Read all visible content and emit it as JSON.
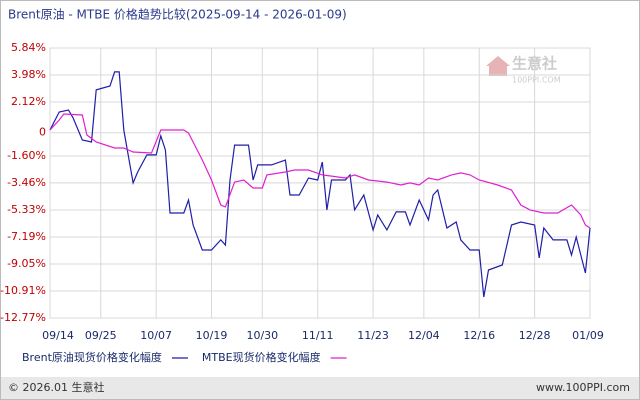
{
  "chart_data": {
    "type": "line",
    "title": "Brent原油 - MTBE 价格趋势比较(2025-09-14 - 2026-01-09)",
    "watermark": "生意社",
    "watermark_sub": "100PPI.COM",
    "footer_left": "© 2026.01 生意社",
    "footer_right": "www.100PPI.com",
    "grid": true,
    "xlim": [
      "09/14",
      "01/09"
    ],
    "xticks": [
      "09/14",
      "09/25",
      "10/07",
      "10/19",
      "10/30",
      "11/11",
      "11/23",
      "12/04",
      "12/16",
      "12/28",
      "01/09"
    ],
    "ylim": [
      -12.77,
      5.84
    ],
    "yticks": [
      {
        "value": 5.84,
        "label": "5.84%"
      },
      {
        "value": 3.98,
        "label": "3.98%"
      },
      {
        "value": 2.12,
        "label": "2.12%"
      },
      0,
      {
        "value": -1.6,
        "label": "-1.60%"
      },
      {
        "value": -3.46,
        "label": "-3.46%"
      },
      {
        "value": -5.33,
        "label": "-5.33%"
      },
      {
        "value": -7.19,
        "label": "-7.19%"
      },
      {
        "value": -9.05,
        "label": "-9.05%"
      },
      {
        "value": -10.91,
        "label": "-10.91%"
      },
      {
        "value": -12.77,
        "label": "-12.77%"
      }
    ],
    "series": [
      {
        "name": "Brent原油现货价格变化幅度",
        "color": "#1f1fa8",
        "x": [
          "09/14",
          "09/16",
          "09/18",
          "09/19",
          "09/21",
          "09/23",
          "09/24",
          "09/27",
          "09/28",
          "09/29",
          "09/30",
          "10/02",
          "10/03",
          "10/05",
          "10/07",
          "10/08",
          "10/09",
          "10/10",
          "10/13",
          "10/14",
          "10/15",
          "10/17",
          "10/19",
          "10/21",
          "10/22",
          "10/23",
          "10/24",
          "10/27",
          "10/28",
          "10/29",
          "11/01",
          "11/04",
          "11/05",
          "11/07",
          "11/09",
          "11/11",
          "11/12",
          "11/13",
          "11/14",
          "11/17",
          "11/18",
          "11/19",
          "11/21",
          "11/23",
          "11/24",
          "11/26",
          "11/28",
          "11/30",
          "12/01",
          "12/03",
          "12/05",
          "12/06",
          "12/07",
          "12/09",
          "12/11",
          "12/12",
          "12/14",
          "12/16",
          "12/17",
          "12/18",
          "12/21",
          "12/23",
          "12/25",
          "12/28",
          "12/29",
          "12/30",
          "01/01",
          "01/04",
          "01/05",
          "01/06",
          "01/08",
          "01/09"
        ],
        "values": [
          0.19,
          1.43,
          1.57,
          1.02,
          -0.5,
          -0.64,
          2.95,
          3.22,
          4.19,
          4.19,
          0.19,
          -3.46,
          -2.71,
          -1.53,
          -1.53,
          -0.22,
          -1.19,
          -5.53,
          -5.53,
          -4.64,
          -6.36,
          -8.08,
          -8.08,
          -7.39,
          -7.74,
          -3.26,
          -0.85,
          -0.85,
          -3.26,
          -2.22,
          -2.22,
          -1.88,
          -4.29,
          -4.29,
          -3.12,
          -3.26,
          -2.02,
          -5.32,
          -3.26,
          -3.26,
          -2.91,
          -5.32,
          -4.29,
          -6.7,
          -5.67,
          -6.7,
          -5.46,
          -5.46,
          -6.36,
          -4.64,
          -6.01,
          -4.29,
          -3.95,
          -6.57,
          -6.15,
          -7.39,
          -8.08,
          -8.08,
          -11.32,
          -9.46,
          -9.12,
          -6.36,
          -6.15,
          -6.36,
          -8.63,
          -6.57,
          -7.39,
          -7.39,
          -8.43,
          -7.19,
          -9.67,
          -6.57
        ]
      },
      {
        "name": "MTBE现货价格变化幅度",
        "color": "#e020d0",
        "x": [
          "09/14",
          "09/16",
          "09/17",
          "09/21",
          "09/22",
          "09/24",
          "09/28",
          "09/30",
          "10/02",
          "10/06",
          "10/08",
          "10/13",
          "10/14",
          "10/17",
          "10/19",
          "10/21",
          "10/22",
          "10/24",
          "10/26",
          "10/28",
          "10/30",
          "10/31",
          "11/04",
          "11/06",
          "11/09",
          "11/12",
          "11/17",
          "11/19",
          "11/22",
          "11/26",
          "11/29",
          "12/01",
          "12/03",
          "12/05",
          "12/07",
          "12/10",
          "12/12",
          "12/14",
          "12/16",
          "12/20",
          "12/23",
          "12/25",
          "12/27",
          "12/30",
          "01/02",
          "01/05",
          "01/07",
          "01/08",
          "01/09"
        ],
        "values": [
          0.19,
          0.88,
          1.29,
          1.22,
          -0.16,
          -0.64,
          -1.05,
          -1.05,
          -1.33,
          -1.4,
          0.19,
          0.19,
          -0.02,
          -1.88,
          -3.26,
          -4.98,
          -5.12,
          -3.4,
          -3.26,
          -3.81,
          -3.81,
          -2.91,
          -2.71,
          -2.57,
          -2.57,
          -2.91,
          -3.12,
          -2.91,
          -3.26,
          -3.4,
          -3.6,
          -3.46,
          -3.6,
          -3.12,
          -3.26,
          -2.91,
          -2.77,
          -2.91,
          -3.26,
          -3.6,
          -3.95,
          -4.98,
          -5.32,
          -5.53,
          -5.53,
          -4.98,
          -5.67,
          -6.36,
          -6.57
        ]
      }
    ]
  }
}
